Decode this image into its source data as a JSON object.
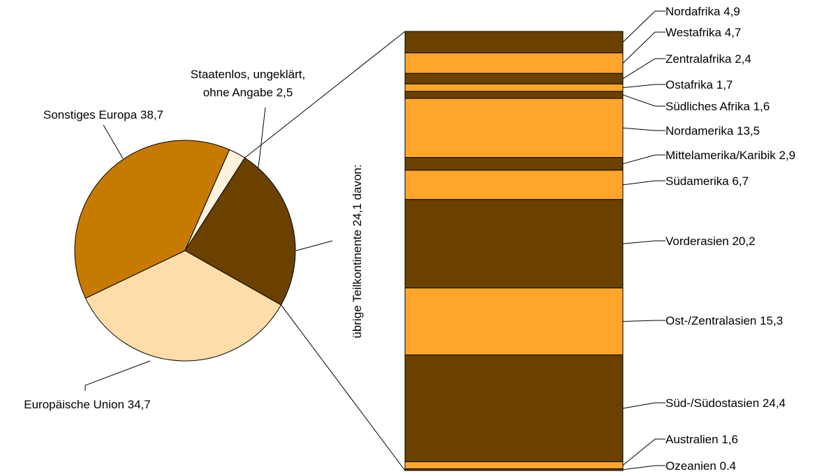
{
  "chart_data": [
    {
      "type": "pie",
      "labels": [
        "Europäische Union",
        "Sonstiges Europa",
        "Staatenlos, ungeklärt, ohne Angabe",
        "übrige Teilkontinente"
      ],
      "values": [
        34.7,
        38.7,
        2.5,
        24.1
      ],
      "colors": [
        "#FFDDA8",
        "#C67A00",
        "#FFF2DC",
        "#6B4100"
      ],
      "slice_labels": [
        [
          "Europäische Union 34,7"
        ],
        [
          "Sonstiges Europa 38,7"
        ],
        [
          "Staatenlos, ungeklärt,",
          "ohne Angabe 2,5"
        ],
        [
          "übrige Teilkontinente 24,1 davon:"
        ]
      ],
      "expanded_slice": "übrige Teilkontinente"
    },
    {
      "type": "bar",
      "stacked": true,
      "orientation": "vertical",
      "categories": [
        "Nordafrika",
        "Westafrika",
        "Zentralafrika",
        "Ostafrika",
        "Südliches Afrika",
        "Nordamerika",
        "Mittelamerika/Karibik",
        "Südamerika",
        "Vorderasien",
        "Ost-/Zentralasien",
        "Süd-/Südostasien",
        "Australien",
        "Ozeanien"
      ],
      "values": [
        4.9,
        4.7,
        2.4,
        1.7,
        1.6,
        13.5,
        2.9,
        6.7,
        20.2,
        15.3,
        24.4,
        1.6,
        0.4
      ],
      "labels": [
        "Nordafrika 4,9",
        "Westafrika 4,7",
        "Zentralafrika 2,4",
        "Ostafrika 1,7",
        "Südliches Afrika 1,6",
        "Nordamerika 13,5",
        "Mittelamerika/Karibik 2,9",
        "Südamerika 6,7",
        "Vorderasien 20,2",
        "Ost-/Zentralasien 15,3",
        "Süd-/Südostasien 24,4",
        "Australien 1,6",
        "Ozeanien 0.4"
      ],
      "colors": [
        "#6B4100",
        "#FFA62A"
      ]
    }
  ]
}
